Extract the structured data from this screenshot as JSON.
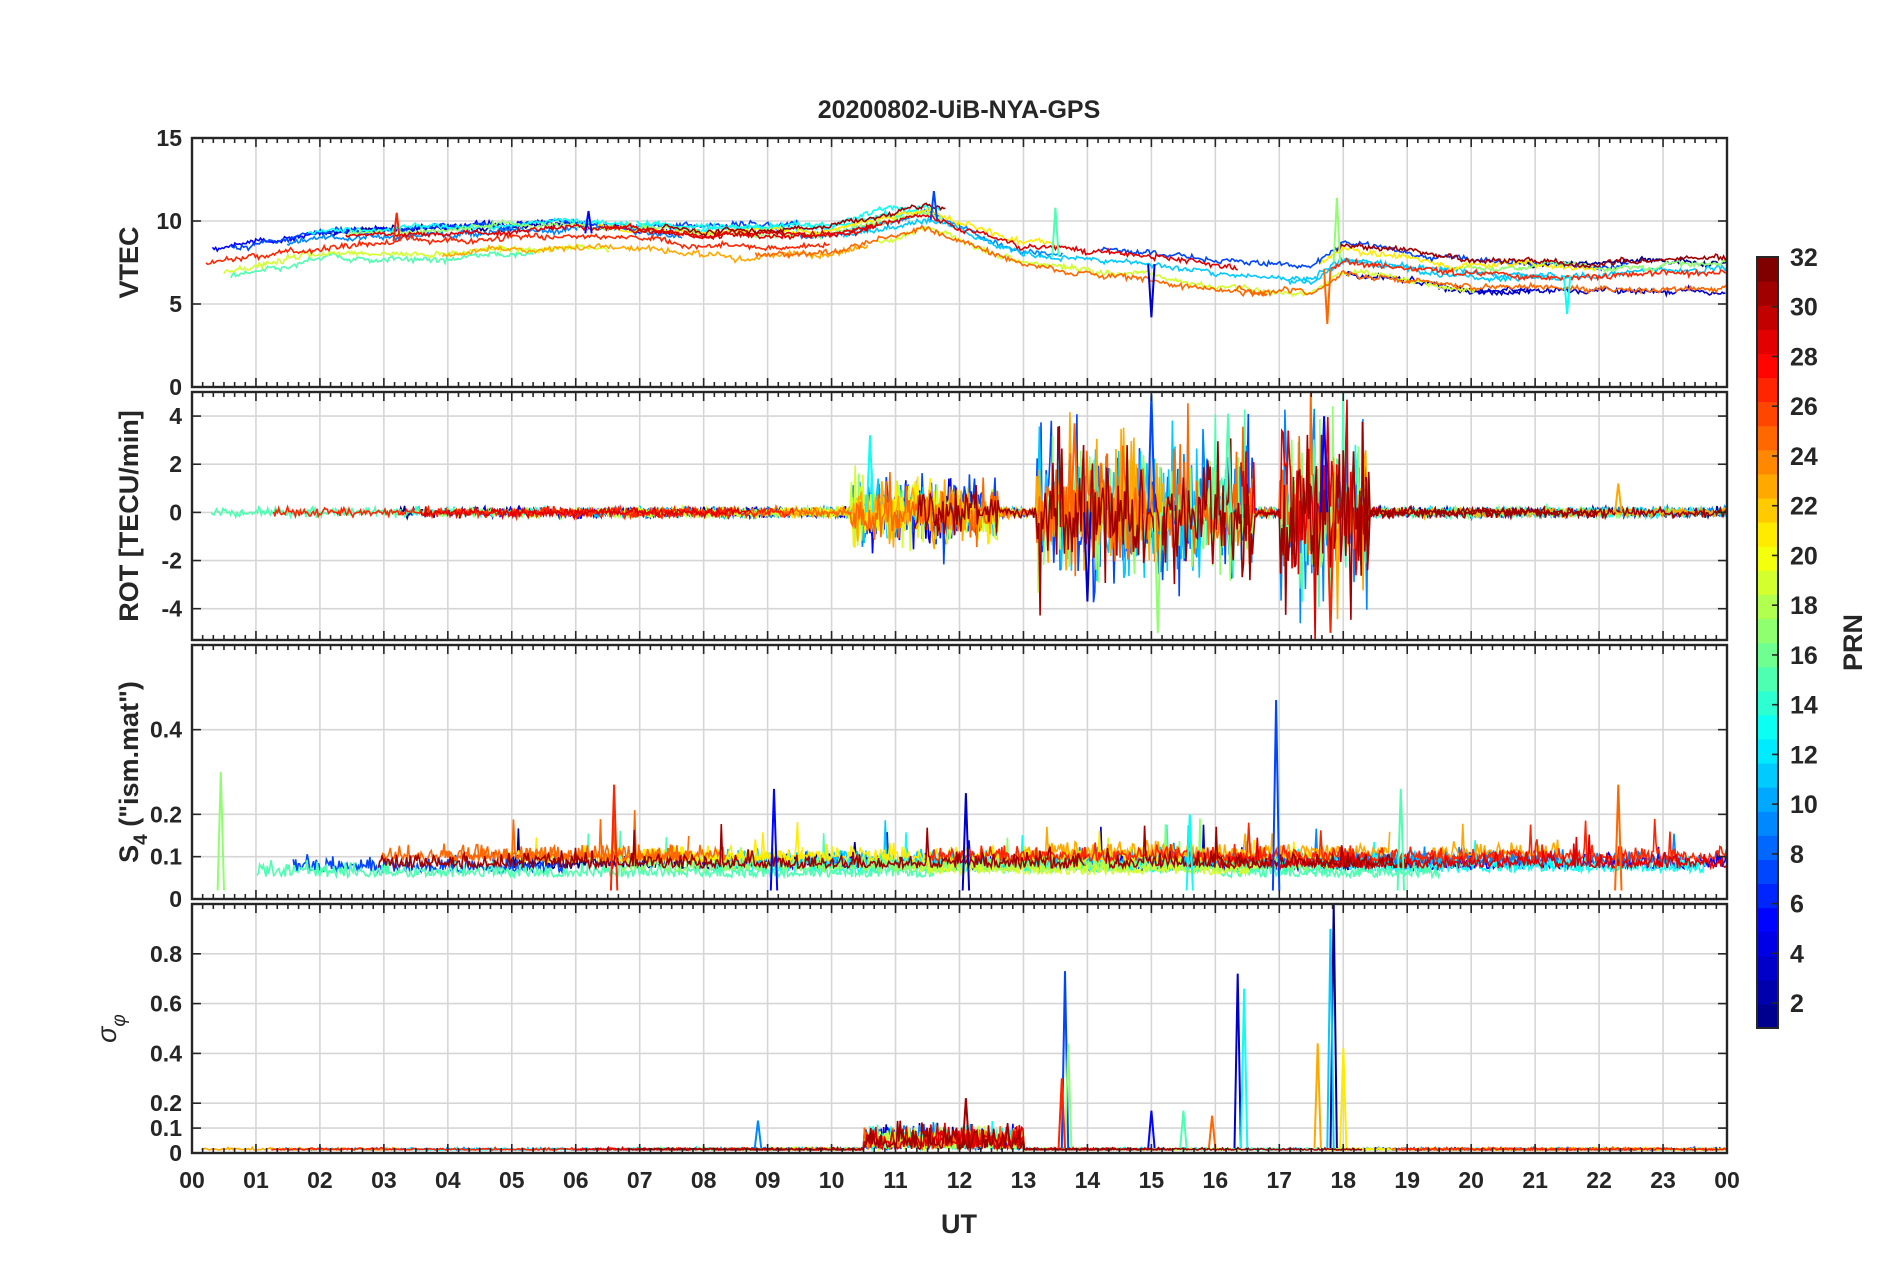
{
  "title": "20200802-UiB-NYA-GPS",
  "x_axis": {
    "label": "UT",
    "ticks": [
      "00",
      "01",
      "02",
      "03",
      "04",
      "05",
      "06",
      "07",
      "08",
      "09",
      "10",
      "11",
      "12",
      "13",
      "14",
      "15",
      "16",
      "17",
      "18",
      "19",
      "20",
      "21",
      "22",
      "23",
      "00"
    ],
    "range_hours": [
      0,
      24
    ]
  },
  "colorbar": {
    "label": "PRN",
    "range": [
      1,
      32
    ],
    "ticks": [
      "32",
      "30",
      "28",
      "26",
      "24",
      "22",
      "20",
      "18",
      "16",
      "14",
      "12",
      "10",
      "8",
      "6",
      "4",
      "2"
    ],
    "tick_values": [
      32,
      30,
      28,
      26,
      24,
      22,
      20,
      18,
      16,
      14,
      12,
      10,
      8,
      6,
      4,
      2
    ],
    "colormap_stops": [
      "#00008f",
      "#0000ff",
      "#0080ff",
      "#00ffff",
      "#80ff80",
      "#ffff00",
      "#ff8000",
      "#ff0000",
      "#800000"
    ]
  },
  "chart_data": [
    {
      "type": "line",
      "id": "vtec",
      "ylabel": "VTEC",
      "ylim": [
        0,
        15
      ],
      "yticks": [
        0,
        5,
        10,
        15
      ],
      "ytick_labels": [
        "0",
        "5",
        "10",
        "15"
      ],
      "series_summary": "multi-PRN VTEC traces, baseline ~6-10 TECU, peak ~11.8 near 11.5 UT",
      "anchors": [
        [
          0,
          7.4
        ],
        [
          2,
          8.6
        ],
        [
          4,
          8.9
        ],
        [
          6,
          9.3
        ],
        [
          8,
          8.8
        ],
        [
          10,
          8.9
        ],
        [
          11.5,
          10.2
        ],
        [
          13,
          8.0
        ],
        [
          15,
          7.4
        ],
        [
          16,
          6.8
        ],
        [
          17.5,
          6.4
        ],
        [
          18,
          7.8
        ],
        [
          20,
          6.8
        ],
        [
          22,
          6.7
        ],
        [
          24,
          6.9
        ]
      ],
      "spikes": [
        [
          11.6,
          11.8
        ],
        [
          17.9,
          11.4
        ],
        [
          3.2,
          10.5
        ],
        [
          6.2,
          10.6
        ],
        [
          13.5,
          10.8
        ],
        [
          17.75,
          3.8
        ],
        [
          15,
          4.2
        ],
        [
          21.5,
          4.4
        ]
      ]
    },
    {
      "type": "line",
      "id": "rot",
      "ylabel": "ROT [TECU/min]",
      "ylim": [
        -5.3,
        5
      ],
      "yticks": [
        -4,
        -2,
        0,
        2,
        4
      ],
      "ytick_labels": [
        "-4",
        "-2",
        "0",
        "2",
        "4"
      ],
      "series_summary": "rate of TEC noise around 0, strong bursts 13-18.5 UT",
      "bursts": [
        [
          10.3,
          12.6,
          1.0
        ],
        [
          13.2,
          16.6,
          2.2
        ],
        [
          17.0,
          18.4,
          2.6
        ]
      ],
      "spikes": [
        [
          15.0,
          4.9
        ],
        [
          15.1,
          -5.0
        ],
        [
          17.8,
          -5.0
        ],
        [
          17.7,
          4.0
        ],
        [
          16.2,
          4.1
        ],
        [
          13.8,
          3.7
        ],
        [
          14.0,
          -3.7
        ],
        [
          10.6,
          3.2
        ],
        [
          22.3,
          1.2
        ]
      ]
    },
    {
      "type": "line",
      "id": "s4",
      "ylabel": "S4 (\"ism.mat\")",
      "ylabel_main": "S",
      "ylabel_sub": "4",
      "ylabel_rest": " (\"ism.mat\")",
      "ylim": [
        0,
        0.6
      ],
      "yticks": [
        0,
        0.1,
        0.2,
        0.4
      ],
      "ytick_labels": [
        "0",
        "0.1",
        "0.2",
        "0.4"
      ],
      "series_summary": "amplitude scintillation baseline ~0.05-0.15",
      "spikes": [
        [
          16.95,
          0.47
        ],
        [
          0.45,
          0.3
        ],
        [
          6.6,
          0.27
        ],
        [
          9.1,
          0.26
        ],
        [
          18.9,
          0.26
        ],
        [
          22.3,
          0.27
        ],
        [
          12.1,
          0.25
        ],
        [
          15.6,
          0.2
        ]
      ]
    },
    {
      "type": "line",
      "id": "sigma_phi",
      "ylabel": "σφ",
      "ylabel_main": "σ",
      "ylabel_sub": "φ",
      "ylim": [
        0,
        1
      ],
      "yticks": [
        0,
        0.1,
        0.2,
        0.4,
        0.6,
        0.8
      ],
      "ytick_labels": [
        "0",
        "0.1",
        "0.2",
        "0.4",
        "0.6",
        "0.8"
      ],
      "series_summary": "phase scintillation index near 0, bump 10.5-13 UT, spikes after 13 UT",
      "bump": [
        10.5,
        13.0,
        0.12
      ],
      "spikes": [
        [
          13.65,
          0.73
        ],
        [
          13.7,
          0.44
        ],
        [
          13.6,
          0.3
        ],
        [
          15.0,
          0.17
        ],
        [
          15.5,
          0.17
        ],
        [
          15.95,
          0.15
        ],
        [
          16.35,
          0.72
        ],
        [
          16.45,
          0.66
        ],
        [
          17.6,
          0.44
        ],
        [
          17.85,
          1.0
        ],
        [
          17.8,
          0.9
        ],
        [
          18.0,
          0.42
        ],
        [
          12.1,
          0.22
        ],
        [
          8.85,
          0.13
        ]
      ]
    }
  ]
}
